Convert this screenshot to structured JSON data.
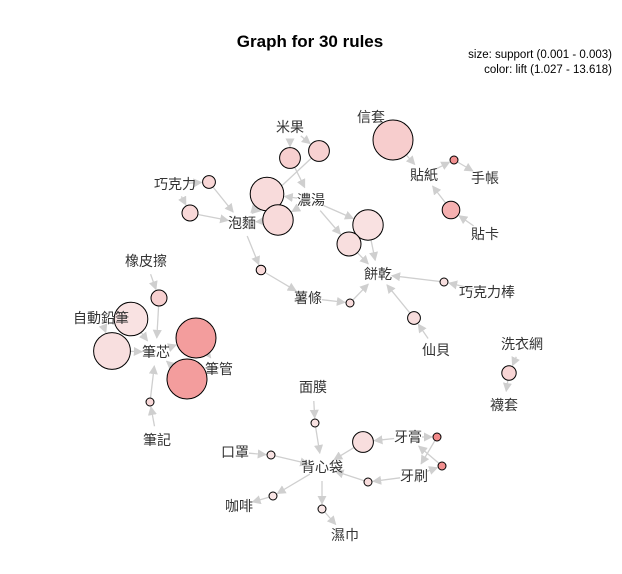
{
  "title": "Graph for 30 rules",
  "legend": {
    "size_text": "size: support (0.001 - 0.003)",
    "color_text": "color: lift (1.027 - 13.618)"
  },
  "colors": {
    "edge": "#cfcfcf",
    "node_low": "#f9e6e6",
    "node_mid": "#f2c6c6",
    "node_high": "#f28a8a"
  },
  "items": [
    {
      "id": "mi_guo",
      "label": "米果"
    },
    {
      "id": "xin_tao",
      "label": "信套"
    },
    {
      "id": "qiao_ke_li",
      "label": "巧克力"
    },
    {
      "id": "tie_zhi",
      "label": "貼紙"
    },
    {
      "id": "shou_zhang",
      "label": "手帳"
    },
    {
      "id": "nong_tang",
      "label": "濃湯"
    },
    {
      "id": "pao_mian",
      "label": "泡麵"
    },
    {
      "id": "tie_ka",
      "label": "貼卡"
    },
    {
      "id": "xiang_pi_ca",
      "label": "橡皮擦"
    },
    {
      "id": "bing_gan",
      "label": "餅乾"
    },
    {
      "id": "qiao_ke_li_bang",
      "label": "巧克力棒"
    },
    {
      "id": "shu_tiao",
      "label": "薯條"
    },
    {
      "id": "zi_dong_qian_bi",
      "label": "自動鉛筆"
    },
    {
      "id": "xi_yi_wang",
      "label": "洗衣網"
    },
    {
      "id": "xian_bei",
      "label": "仙貝"
    },
    {
      "id": "bi_xin",
      "label": "筆芯"
    },
    {
      "id": "bi_guan",
      "label": "筆管"
    },
    {
      "id": "wa_tao",
      "label": "襪套"
    },
    {
      "id": "mian_mo",
      "label": "面膜"
    },
    {
      "id": "bi_ji",
      "label": "筆記"
    },
    {
      "id": "ya_gao",
      "label": "牙膏"
    },
    {
      "id": "kou_zhao",
      "label": "口罩"
    },
    {
      "id": "bei_xin_dai",
      "label": "背心袋"
    },
    {
      "id": "ya_shua",
      "label": "牙刷"
    },
    {
      "id": "ka_fei",
      "label": "咖啡"
    },
    {
      "id": "shi_jin",
      "label": "濕巾"
    }
  ],
  "rules": [
    {
      "from": [
        "mi_guo"
      ],
      "to": "nong_tang",
      "support": 0.0018,
      "lift": 3.2
    },
    {
      "from": [
        "mi_guo"
      ],
      "to": "pao_mian",
      "support": 0.0018,
      "lift": 3.0
    },
    {
      "from": [
        "xin_tao"
      ],
      "to": "tie_zhi",
      "support": 0.003,
      "lift": 3.5
    },
    {
      "from": [
        "tie_zhi"
      ],
      "to": "shou_zhang",
      "support": 0.001,
      "lift": 12.5
    },
    {
      "from": [
        "tie_ka"
      ],
      "to": "tie_zhi",
      "support": 0.0016,
      "lift": 7.5
    },
    {
      "from": [
        "qiao_ke_li"
      ],
      "to": "pao_mian",
      "support": 0.0013,
      "lift": 2.4
    },
    {
      "from": [
        "qiao_ke_li"
      ],
      "to": "pao_mian",
      "support": 0.0015,
      "lift": 2.2
    },
    {
      "from": [
        "nong_tang"
      ],
      "to": "pao_mian",
      "support": 0.0026,
      "lift": 1.9
    },
    {
      "from": [
        "nong_tang"
      ],
      "to": "pao_mian",
      "support": 0.0024,
      "lift": 2.0
    },
    {
      "from": [
        "nong_tang"
      ],
      "to": "bing_gan",
      "support": 0.0024,
      "lift": 1.4
    },
    {
      "from": [
        "nong_tang"
      ],
      "to": "bing_gan",
      "support": 0.002,
      "lift": 1.6
    },
    {
      "from": [
        "pao_mian"
      ],
      "to": "shu_tiao",
      "support": 0.0011,
      "lift": 2.1
    },
    {
      "from": [
        "shu_tiao"
      ],
      "to": "bing_gan",
      "support": 0.001,
      "lift": 1.8
    },
    {
      "from": [
        "qiao_ke_li_bang"
      ],
      "to": "bing_gan",
      "support": 0.001,
      "lift": 1.5
    },
    {
      "from": [
        "xian_bei"
      ],
      "to": "bing_gan",
      "support": 0.0013,
      "lift": 1.7
    },
    {
      "from": [
        "xiang_pi_ca"
      ],
      "to": "bi_xin",
      "support": 0.0015,
      "lift": 3.1
    },
    {
      "from": [
        "zi_dong_qian_bi"
      ],
      "to": "bi_xin",
      "support": 0.0026,
      "lift": 1.3
    },
    {
      "from": [
        "zi_dong_qian_bi"
      ],
      "to": "bi_xin",
      "support": 0.0028,
      "lift": 1.5
    },
    {
      "from": [
        "bi_xin"
      ],
      "to": "bi_guan",
      "support": 0.003,
      "lift": 10.5
    },
    {
      "from": [
        "bi_guan"
      ],
      "to": "bi_xin",
      "support": 0.003,
      "lift": 10.5
    },
    {
      "from": [
        "bi_ji"
      ],
      "to": "bi_xin",
      "support": 0.001,
      "lift": 2.2
    },
    {
      "from": [
        "xi_yi_wang"
      ],
      "to": "wa_tao",
      "support": 0.0014,
      "lift": 2.5
    },
    {
      "from": [
        "mian_mo"
      ],
      "to": "bei_xin_dai",
      "support": 0.001,
      "lift": 1.3
    },
    {
      "from": [
        "kou_zhao"
      ],
      "to": "bei_xin_dai",
      "support": 0.001,
      "lift": 1.2
    },
    {
      "from": [
        "ya_gao"
      ],
      "to": "bei_xin_dai",
      "support": 0.0018,
      "lift": 1.6
    },
    {
      "from": [
        "ya_gao"
      ],
      "to": "ya_shua",
      "support": 0.001,
      "lift": 13.6
    },
    {
      "from": [
        "ya_shua"
      ],
      "to": "ya_gao",
      "support": 0.001,
      "lift": 12.8
    },
    {
      "from": [
        "ya_shua"
      ],
      "to": "bei_xin_dai",
      "support": 0.001,
      "lift": 1.8
    },
    {
      "from": [
        "bei_xin_dai"
      ],
      "to": "ka_fei",
      "support": 0.001,
      "lift": 1.1
    },
    {
      "from": [
        "bei_xin_dai"
      ],
      "to": "shi_jin",
      "support": 0.001,
      "lift": 1.03
    }
  ]
}
